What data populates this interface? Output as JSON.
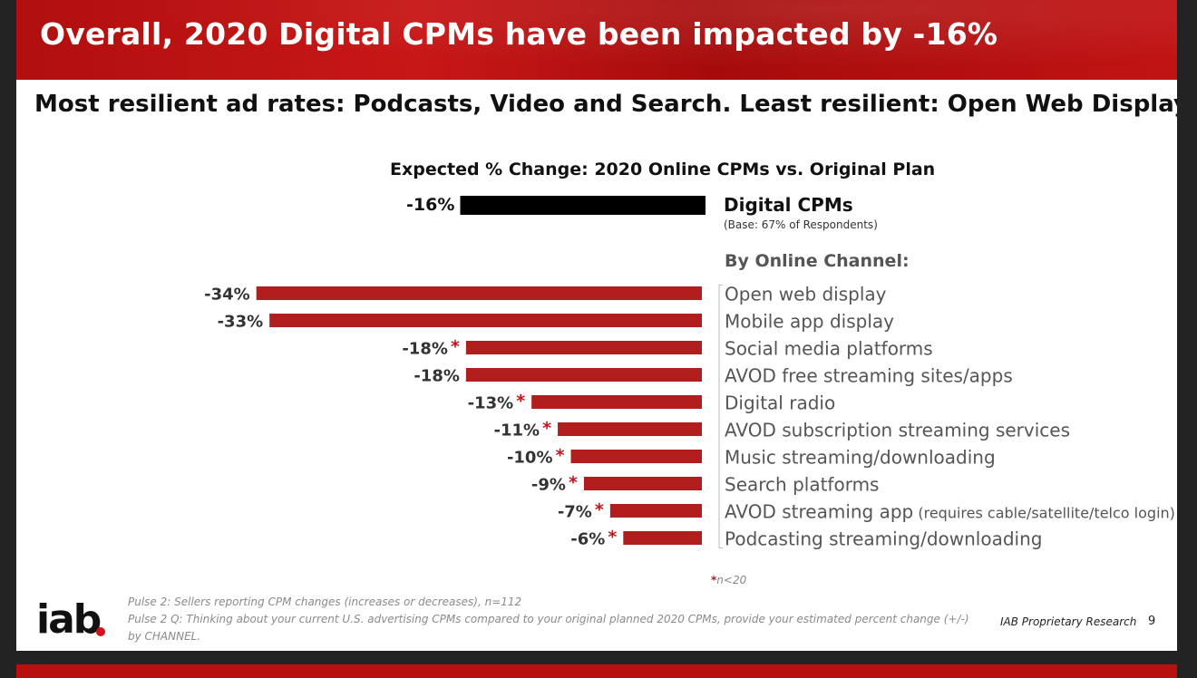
{
  "slide": {
    "title": "Overall, 2020 Digital CPMs have been impacted by -16%",
    "subtitle": "Most resilient ad rates: Podcasts, Video and Search.  Least resilient: Open Web Display",
    "page_number": "9",
    "proprietary": "IAB Proprietary Research",
    "logo_text": "iab",
    "source_lines": [
      "Pulse 2: Sellers reporting CPM changes (increases or decreases), n=112",
      "Pulse 2 Q: Thinking about your current U.S. advertising CPMs compared to your original planned 2020 CPMs, provide your estimated percent change (+/-)",
      "by CHANNEL."
    ],
    "footnote_star": "*",
    "footnote_text": "n<20"
  },
  "chart_data": {
    "type": "bar",
    "orientation": "horizontal",
    "title": "Expected % Change: 2020 Online CPMs vs. Original Plan",
    "total": {
      "name": "Digital CPMs",
      "base_note": "(Base:  67% of Respondents)",
      "value": -16,
      "label": "-16%",
      "color": "#000000"
    },
    "group_label": "By Online Channel:",
    "bar_color": "#b21e1e",
    "star_color": "#c0151a",
    "categories": [
      "Open web display",
      "Mobile app display",
      "Social media platforms",
      "AVOD free streaming sites/apps",
      "Digital radio",
      "AVOD subscription streaming services",
      "Music streaming/downloading",
      "Search platforms",
      "AVOD streaming app",
      "Podcasting streaming/downloading"
    ],
    "category_notes": [
      "",
      "",
      "",
      "",
      "",
      "",
      "",
      "",
      "(requires cable/satellite/telco login)",
      ""
    ],
    "values": [
      -34,
      -33,
      -18,
      -18,
      -13,
      -11,
      -10,
      -9,
      -7,
      -6
    ],
    "labels": [
      "-34%",
      "-33%",
      "-18%",
      "-18%",
      "-13%",
      "-11%",
      "-10%",
      "-9%",
      "-7%",
      "-6%"
    ],
    "small_base": [
      false,
      false,
      true,
      false,
      true,
      true,
      true,
      true,
      true,
      true
    ]
  }
}
